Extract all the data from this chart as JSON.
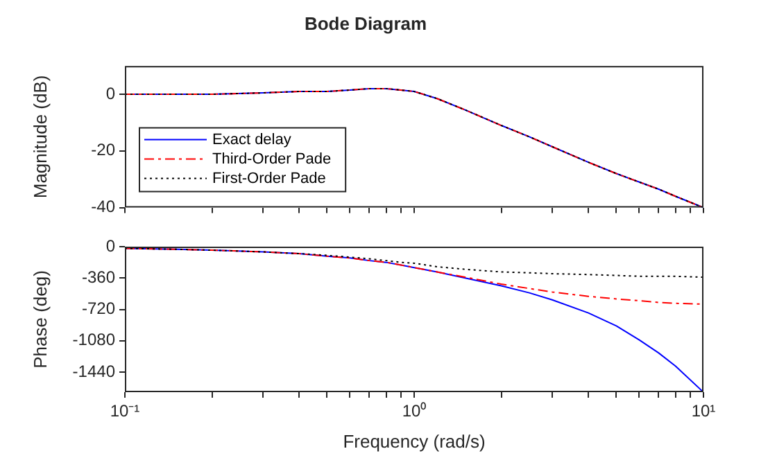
{
  "chart_data": [
    {
      "type": "line",
      "title": "Bode Diagram",
      "ylabel": "Magnitude (dB)",
      "log": "x",
      "xlim": [
        0.1,
        10
      ],
      "xticks": [
        {
          "value": 0.1,
          "label": null
        },
        {
          "value": 0.2,
          "label": null
        },
        {
          "value": 0.3,
          "label": null
        },
        {
          "value": 0.4,
          "label": null
        },
        {
          "value": 0.5,
          "label": null
        },
        {
          "value": 0.6,
          "label": null
        },
        {
          "value": 0.7,
          "label": null
        },
        {
          "value": 0.8,
          "label": null
        },
        {
          "value": 0.9,
          "label": null
        },
        {
          "value": 1,
          "label": null
        },
        {
          "value": 2,
          "label": null
        },
        {
          "value": 3,
          "label": null
        },
        {
          "value": 4,
          "label": null
        },
        {
          "value": 5,
          "label": null
        },
        {
          "value": 6,
          "label": null
        },
        {
          "value": 7,
          "label": null
        },
        {
          "value": 8,
          "label": null
        },
        {
          "value": 9,
          "label": null
        },
        {
          "value": 10,
          "label": null
        }
      ],
      "ylim": [
        -40,
        10
      ],
      "yticks": [
        -40,
        -20,
        0
      ],
      "tick_labels": "y",
      "legend": "bottom left",
      "x": [
        0.1,
        0.15,
        0.2,
        0.3,
        0.4,
        0.5,
        0.6,
        0.7,
        0.8,
        0.9,
        1,
        1.2,
        1.5,
        2,
        2.5,
        3,
        4,
        5,
        6,
        7,
        8,
        10
      ],
      "series": [
        {
          "name": "Exact delay",
          "color": "#0000ff",
          "line_style": "solid",
          "values": [
            0,
            0,
            0,
            0.5,
            1,
            1,
            1.5,
            2,
            2,
            1.5,
            1,
            -1.5,
            -5.5,
            -11,
            -15,
            -18.5,
            -24,
            -28,
            -31,
            -33.5,
            -36,
            -40
          ]
        },
        {
          "name": "Third-Order Pade",
          "color": "#ff0000",
          "line_style": "dashed",
          "values": [
            0,
            0,
            0,
            0.5,
            1,
            1,
            1.5,
            2,
            2,
            1.5,
            1,
            -1.5,
            -5.5,
            -11,
            -15,
            -18.5,
            -24,
            -28,
            -31,
            -33.5,
            -36,
            -40
          ]
        },
        {
          "name": "First-Order Pade",
          "color": "#000000",
          "line_style": "dotted",
          "values": [
            0,
            0,
            0,
            0.5,
            1,
            1,
            1.5,
            2,
            2,
            1.5,
            1,
            -1.5,
            -5.5,
            -11,
            -15,
            -18.5,
            -24,
            -28,
            -31,
            -33.5,
            -36,
            -40
          ]
        }
      ]
    },
    {
      "type": "line",
      "xlabel": "Frequency (rad/s)",
      "ylabel": "Phase (deg)",
      "log": "x",
      "xlim": [
        0.1,
        10
      ],
      "xticks": [
        {
          "value": 0.1,
          "label": "10⁻¹"
        },
        {
          "value": 0.2,
          "label": null
        },
        {
          "value": 0.3,
          "label": null
        },
        {
          "value": 0.4,
          "label": null
        },
        {
          "value": 0.5,
          "label": null
        },
        {
          "value": 0.6,
          "label": null
        },
        {
          "value": 0.7,
          "label": null
        },
        {
          "value": 0.8,
          "label": null
        },
        {
          "value": 0.9,
          "label": null
        },
        {
          "value": 1,
          "label": "10⁰"
        },
        {
          "value": 2,
          "label": null
        },
        {
          "value": 3,
          "label": null
        },
        {
          "value": 4,
          "label": null
        },
        {
          "value": 5,
          "label": null
        },
        {
          "value": 6,
          "label": null
        },
        {
          "value": 7,
          "label": null
        },
        {
          "value": 8,
          "label": null
        },
        {
          "value": 9,
          "label": null
        },
        {
          "value": 10,
          "label": "10¹"
        }
      ],
      "ylim": [
        -1670,
        0
      ],
      "yticks": [
        -1440,
        -1080,
        -720,
        -360,
        0
      ],
      "x": [
        0.1,
        0.15,
        0.2,
        0.3,
        0.4,
        0.5,
        0.6,
        0.7,
        0.8,
        0.9,
        1,
        1.2,
        1.5,
        2,
        2.5,
        3,
        4,
        5,
        6,
        7,
        8,
        10
      ],
      "series": [
        {
          "color": "#0000ff",
          "line_style": "solid",
          "values": [
            -20,
            -30,
            -40,
            -60,
            -80,
            -110,
            -130,
            -160,
            -180,
            -210,
            -240,
            -290,
            -360,
            -450,
            -530,
            -610,
            -760,
            -910,
            -1070,
            -1220,
            -1370,
            -1670
          ]
        },
        {
          "color": "#ff0000",
          "line_style": "dashed",
          "values": [
            -20,
            -30,
            -40,
            -60,
            -80,
            -110,
            -130,
            -160,
            -180,
            -210,
            -240,
            -290,
            -350,
            -430,
            -480,
            -520,
            -570,
            -600,
            -620,
            -640,
            -650,
            -660
          ]
        },
        {
          "color": "#000000",
          "line_style": "dotted",
          "values": [
            -20,
            -30,
            -40,
            -60,
            -80,
            -100,
            -120,
            -140,
            -160,
            -180,
            -190,
            -230,
            -260,
            -290,
            -300,
            -310,
            -320,
            -330,
            -340,
            -340,
            -340,
            -350
          ]
        }
      ]
    }
  ]
}
